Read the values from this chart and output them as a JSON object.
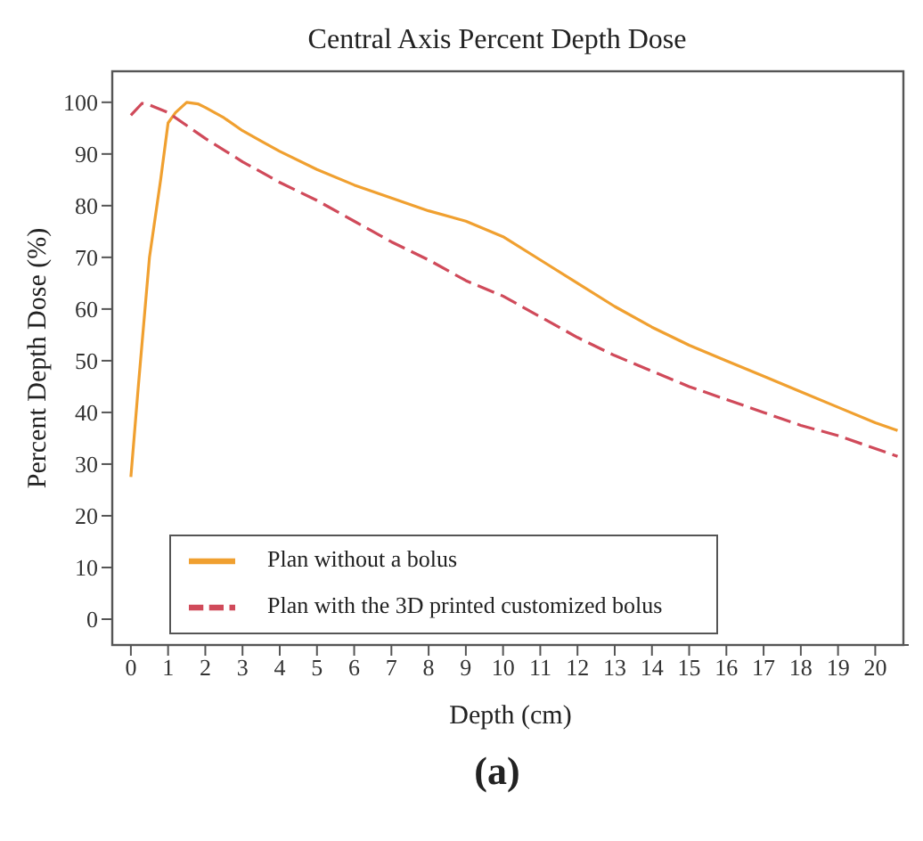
{
  "chart_data": {
    "type": "line",
    "title": "Central Axis Percent Depth Dose",
    "xlabel": "Depth (cm)",
    "ylabel": "Percent Depth Dose (%)",
    "annotations": [
      "(a)"
    ],
    "xlim": [
      -0.5,
      20.9
    ],
    "xticks": [
      0,
      1,
      2,
      3,
      4,
      5,
      6,
      7,
      8,
      9,
      10,
      11,
      12,
      13,
      14,
      15,
      16,
      17,
      18,
      19,
      20
    ],
    "ylim": [
      -5,
      106
    ],
    "yticks": [
      0,
      10,
      20,
      30,
      40,
      50,
      60,
      70,
      80,
      90,
      100
    ],
    "grid": false,
    "legend": "bottom left",
    "marker": "none",
    "series": [
      {
        "name": "Plan without a bolus",
        "color": "#f0a030",
        "line_style": "solid",
        "x": [
          0,
          0.2,
          0.5,
          0.8,
          1.0,
          1.2,
          1.5,
          1.8,
          2,
          2.5,
          3,
          3.5,
          4,
          5,
          6,
          7,
          8,
          9,
          10,
          11,
          12,
          13,
          14,
          15,
          16,
          17,
          18,
          19,
          20,
          20.6
        ],
        "values": [
          27.5,
          45,
          70,
          85,
          96,
          98,
          100,
          99.7,
          99,
          97,
          94.5,
          92.5,
          90.5,
          87,
          84,
          81.5,
          79,
          77,
          74,
          69.5,
          65,
          60.5,
          56.5,
          53,
          50,
          47,
          44,
          41,
          38,
          36.5
        ]
      },
      {
        "name": "Plan with the 3D printed customized bolus",
        "color": "#d04a5a",
        "line_style": "dashed",
        "x": [
          0,
          0.3,
          0.5,
          1,
          2,
          3,
          4,
          5,
          6,
          7,
          8,
          9,
          10,
          11,
          12,
          13,
          14,
          15,
          16,
          17,
          18,
          19,
          20,
          20.6
        ],
        "values": [
          97.5,
          99.8,
          99.5,
          98,
          93,
          88.5,
          84.5,
          81,
          77,
          73,
          69.5,
          65.5,
          62.5,
          58.5,
          54.5,
          51,
          48,
          45,
          42.5,
          40,
          37.5,
          35.5,
          33,
          31.5
        ]
      }
    ]
  }
}
